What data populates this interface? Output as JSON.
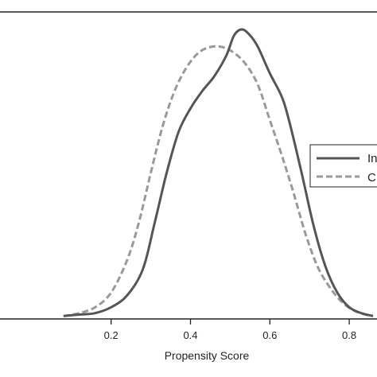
{
  "chart_data": {
    "type": "line",
    "title": "",
    "xlabel": "Propensity Score",
    "ylabel": "",
    "xlim": [
      -0.08,
      0.87
    ],
    "ylim": [
      0,
      1.05
    ],
    "x_ticks": [
      0.2,
      0.4,
      0.6,
      0.8
    ],
    "x_tick_labels": [
      "0.2",
      "0.4",
      "0.6",
      "0.8"
    ],
    "legend": {
      "placement": "right",
      "entries": [
        "In",
        "C"
      ]
    },
    "series": [
      {
        "name": "In",
        "style": "solid",
        "color": "#555555",
        "x": [
          0.08,
          0.12,
          0.16,
          0.2,
          0.24,
          0.28,
          0.31,
          0.34,
          0.37,
          0.4,
          0.43,
          0.46,
          0.49,
          0.51,
          0.53,
          0.55,
          0.57,
          0.6,
          0.63,
          0.65,
          0.68,
          0.71,
          0.74,
          0.77,
          0.8,
          0.83,
          0.86
        ],
        "y": [
          0.01,
          0.015,
          0.02,
          0.04,
          0.08,
          0.17,
          0.33,
          0.5,
          0.64,
          0.72,
          0.78,
          0.83,
          0.9,
          0.97,
          0.99,
          0.97,
          0.93,
          0.84,
          0.76,
          0.67,
          0.5,
          0.32,
          0.18,
          0.09,
          0.04,
          0.02,
          0.01
        ]
      },
      {
        "name": "C",
        "style": "dashed",
        "color": "#999999",
        "x": [
          0.08,
          0.12,
          0.16,
          0.2,
          0.24,
          0.27,
          0.3,
          0.33,
          0.36,
          0.39,
          0.42,
          0.45,
          0.48,
          0.51,
          0.54,
          0.57,
          0.6,
          0.63,
          0.66,
          0.69,
          0.72,
          0.75,
          0.78,
          0.81,
          0.84,
          0.86
        ],
        "y": [
          0.01,
          0.02,
          0.04,
          0.09,
          0.2,
          0.33,
          0.5,
          0.66,
          0.78,
          0.86,
          0.91,
          0.93,
          0.93,
          0.91,
          0.87,
          0.8,
          0.68,
          0.56,
          0.43,
          0.29,
          0.18,
          0.11,
          0.06,
          0.03,
          0.015,
          0.01
        ]
      }
    ]
  }
}
